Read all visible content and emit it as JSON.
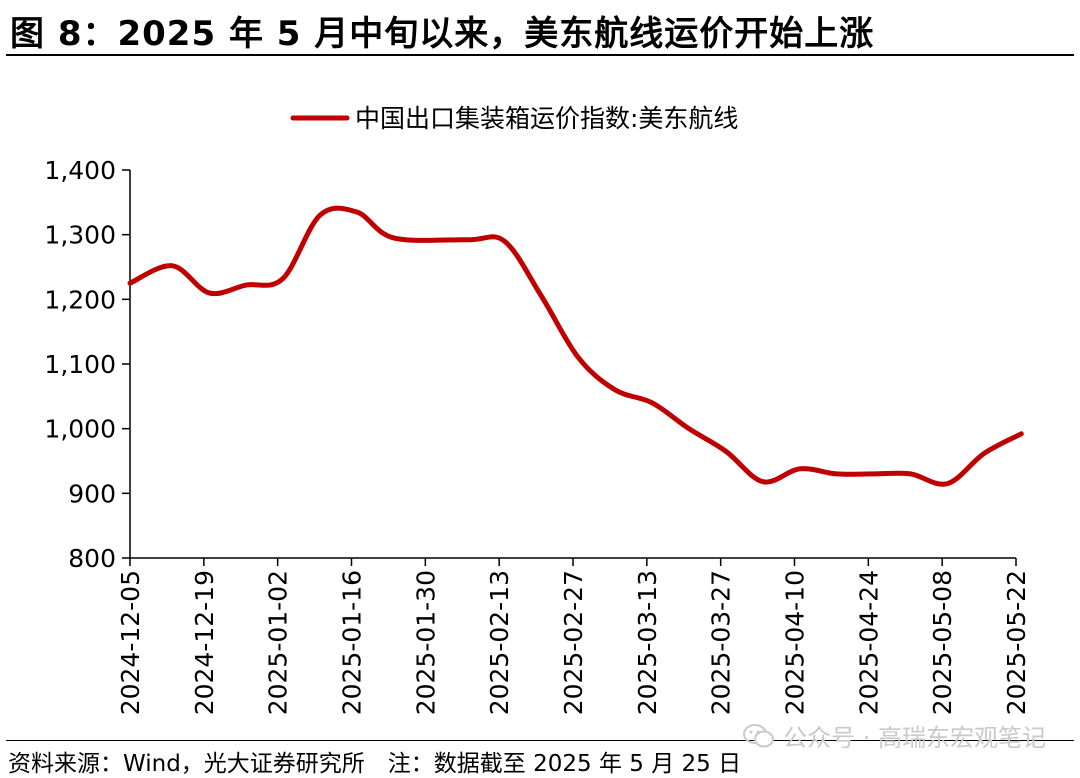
{
  "header": {
    "title": "图 8：2025 年 5 月中旬以来，美东航线运价开始上涨"
  },
  "footer": {
    "source": "资料来源：Wind，光大证券研究所　注：数据截至 2025 年 5 月 25 日",
    "watermark": "公众号 · 高瑞东宏观笔记",
    "watermark_icon": "wechat-icon"
  },
  "colors": {
    "series": "#C00000",
    "axis": "#000000"
  },
  "chart_data": {
    "type": "line",
    "legend": {
      "placement": "top-center"
    },
    "grid": false,
    "ylim": [
      800,
      1400
    ],
    "yticks": [
      800,
      900,
      1000,
      1100,
      1200,
      1300,
      1400
    ],
    "ytick_labels": [
      "800",
      "900",
      "1,000",
      "1,100",
      "1,200",
      "1,300",
      "1,400"
    ],
    "xlim": [
      "2024-12-05",
      "2025-05-22"
    ],
    "xticks": [
      "2024-12-05",
      "2024-12-19",
      "2025-01-02",
      "2025-01-16",
      "2025-01-30",
      "2025-02-13",
      "2025-02-27",
      "2025-03-13",
      "2025-03-27",
      "2025-04-10",
      "2025-04-24",
      "2025-05-08",
      "2025-05-22"
    ],
    "series": [
      {
        "name": "中国出口集装箱运价指数:美东航线",
        "color": "#C00000",
        "x": [
          "2024-12-05",
          "2024-12-13",
          "2024-12-20",
          "2024-12-27",
          "2025-01-03",
          "2025-01-10",
          "2025-01-17",
          "2025-01-24",
          "2025-02-07",
          "2025-02-14",
          "2025-02-21",
          "2025-02-28",
          "2025-03-07",
          "2025-03-14",
          "2025-03-21",
          "2025-03-28",
          "2025-04-04",
          "2025-04-11",
          "2025-04-18",
          "2025-04-25",
          "2025-05-02",
          "2025-05-09",
          "2025-05-16",
          "2025-05-23"
        ],
        "values": [
          1225,
          1252,
          1210,
          1222,
          1232,
          1330,
          1335,
          1295,
          1292,
          1290,
          1205,
          1110,
          1060,
          1040,
          1000,
          965,
          918,
          938,
          930,
          930,
          930,
          915,
          962,
          992
        ]
      }
    ]
  }
}
